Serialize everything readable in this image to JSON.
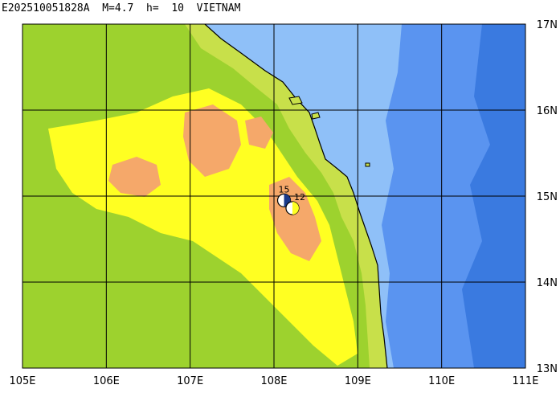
{
  "title": "E202510051828A  M=4.7  h=  10  VIETNAM",
  "longitude_labels": [
    "105E",
    "106E",
    "107E",
    "108E",
    "109E",
    "110E",
    "111E"
  ],
  "latitude_labels": [
    "17N",
    "16N",
    "15N",
    "14N",
    "13N"
  ],
  "events": [
    {
      "label": "15",
      "lon": 108.12,
      "lat": 14.95
    },
    {
      "label": "12",
      "lon": 108.22,
      "lat": 14.86
    }
  ],
  "colors": {
    "lowland": "#c8e04a",
    "plain": "#9dd22e",
    "upland": "#ffff22",
    "highland": "#f5a86a",
    "shallow_sea": "#8fc0f8",
    "deep_sea": "#5a94f0",
    "deepest_sea": "#3a7ae0",
    "grid": "#000000"
  }
}
